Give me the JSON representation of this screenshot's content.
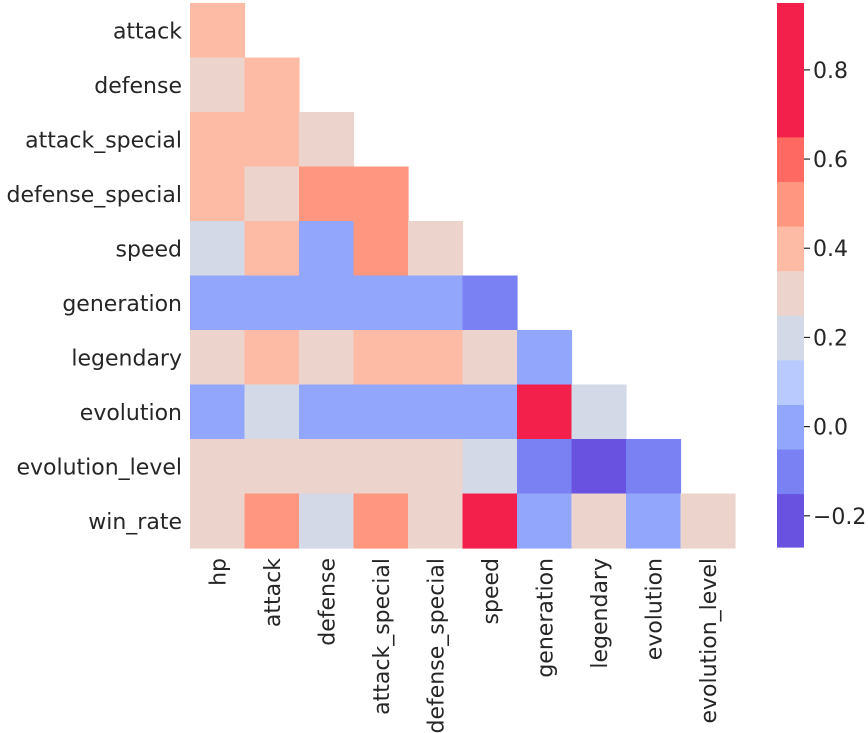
{
  "chart_data": {
    "type": "heatmap",
    "mask": "upper-triangle-including-diagonal",
    "row_labels": [
      "attack",
      "defense",
      "attack_special",
      "defense_special",
      "speed",
      "generation",
      "legendary",
      "evolution",
      "evolution_level",
      "win_rate"
    ],
    "col_labels": [
      "hp",
      "attack",
      "defense",
      "attack_special",
      "defense_special",
      "speed",
      "generation",
      "legendary",
      "evolution",
      "evolution_level"
    ],
    "values": [
      [
        0.4
      ],
      [
        0.3,
        0.4
      ],
      [
        0.4,
        0.4,
        0.3
      ],
      [
        0.4,
        0.3,
        0.5,
        0.5
      ],
      [
        0.2,
        0.4,
        0.0,
        0.5,
        0.3
      ],
      [
        0.0,
        0.0,
        0.0,
        0.0,
        0.0,
        -0.1
      ],
      [
        0.3,
        0.4,
        0.3,
        0.4,
        0.4,
        0.3,
        0.0
      ],
      [
        0.0,
        0.2,
        0.0,
        0.0,
        0.0,
        0.0,
        0.9,
        0.2
      ],
      [
        0.3,
        0.3,
        0.3,
        0.3,
        0.3,
        0.2,
        -0.1,
        -0.2,
        -0.1
      ],
      [
        0.3,
        0.5,
        0.2,
        0.5,
        0.3,
        0.9,
        0.0,
        0.3,
        0.0,
        0.3
      ]
    ],
    "colorbar": {
      "vmin": -0.27,
      "vmax": 0.95,
      "ticks": [
        -0.2,
        0.0,
        0.2,
        0.4,
        0.6,
        0.8
      ],
      "tick_labels": [
        "−0.2",
        "0.0",
        "0.2",
        "0.4",
        "0.6",
        "0.8"
      ],
      "bands": [
        -0.27,
        -0.15,
        -0.05,
        0.05,
        0.15,
        0.25,
        0.35,
        0.45,
        0.55,
        0.65,
        0.75,
        0.85,
        0.95
      ],
      "band_colors": [
        "#6a52e0",
        "#7a82f3",
        "#92a7fc",
        "#b9cbfe",
        "#d3d9e7",
        "#ecd4cc",
        "#fdbba6",
        "#fe9680",
        "#fe6a62",
        "#f2204a",
        "#f2204a",
        "#f2204a"
      ]
    },
    "colors": {
      "negative": "#6a52e0",
      "neutral": "#d3d9e7",
      "positive": "#f2204a"
    },
    "title": "",
    "xlabel": "",
    "ylabel": ""
  }
}
